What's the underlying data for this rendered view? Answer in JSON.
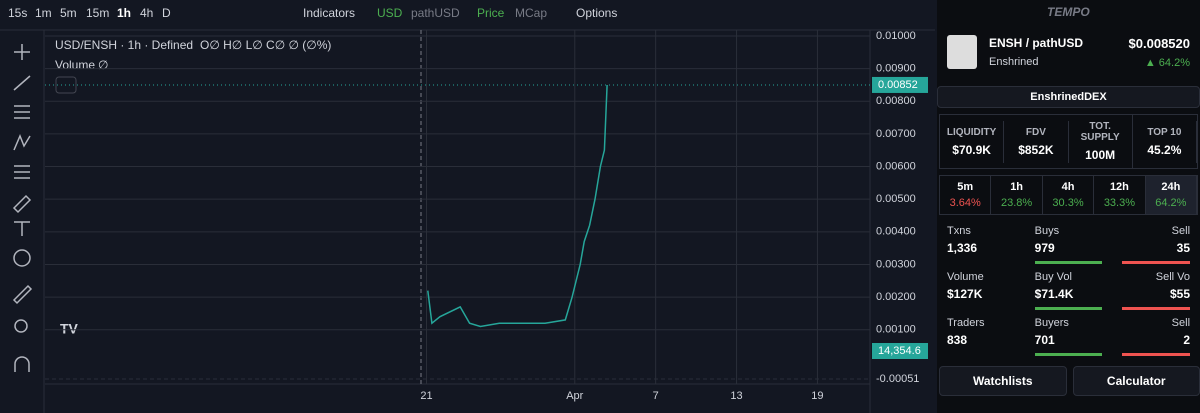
{
  "toolbar": {
    "timeframes": [
      "15s",
      "1m",
      "5m",
      "15m",
      "1h",
      "4h",
      "D"
    ],
    "indicators": "Indicators",
    "currency": "USD",
    "quote": "pathUSD",
    "price": "Price",
    "mcap": "MCap",
    "options": "Options"
  },
  "chart": {
    "legend": "USD/ENSH · 1h · Defined",
    "ohlc": "O∅ H∅ L∅ C∅ ∅ (∅%)",
    "volume_label": "Volume",
    "volume_value": "∅",
    "price_tag": "0.00852",
    "volume_tag": "14,354.6",
    "ylim": [
      -0.00051,
      0.01
    ],
    "yticks": [
      {
        "value": 0.001,
        "label": "0.00100"
      },
      {
        "value": 0.002,
        "label": "0.00200"
      },
      {
        "value": 0.003,
        "label": "0.00300"
      },
      {
        "value": 0.004,
        "label": "0.00400"
      },
      {
        "value": 0.005,
        "label": "0.00500"
      },
      {
        "value": 0.006,
        "label": "0.00600"
      },
      {
        "value": 0.007,
        "label": "0.00700"
      },
      {
        "value": 0.008,
        "label": "0.00800"
      },
      {
        "value": 0.009,
        "label": "0.00900"
      },
      {
        "value": 0.01,
        "label": "0.01000"
      },
      {
        "value": -0.00051,
        "label": "-0.00051"
      }
    ],
    "xlim": [
      -7.3,
      53.9
    ],
    "xticks": [
      21,
      {
        "value": 32,
        "label": "Apr"
      },
      {
        "value": 38,
        "label": "7"
      },
      {
        "value": 44,
        "label": "13"
      },
      {
        "value": 50,
        "label": "19"
      }
    ],
    "price": {
      "color": "#26a69a",
      "x": [
        21.1,
        21.4,
        22,
        23.5,
        24.2,
        25,
        26.4,
        27.9,
        29.8,
        31.3,
        31.8,
        32.4,
        32.7,
        33.1,
        33.5,
        33.9,
        34.2,
        34.4
      ],
      "y": [
        0.0022,
        0.0012,
        0.0014,
        0.0017,
        0.0012,
        0.0011,
        0.0012,
        0.0012,
        0.0012,
        0.0013,
        0.002,
        0.003,
        0.0037,
        0.0042,
        0.005,
        0.006,
        0.0065,
        0.0085
      ]
    }
  },
  "panel": {
    "brand": "TEMPO",
    "token": "ENSH",
    "quote": "/ pathUSD",
    "price": "$0.008520",
    "name": "Enshrined",
    "change": "▲ 64.2%",
    "link": "EnshrinedDEX",
    "stats": [
      {
        "label": "LIQUIDITY",
        "value": "$70.9K"
      },
      {
        "label": "FDV",
        "value": "$852K"
      },
      {
        "label": "TOT. SUPPLY",
        "value": "100M"
      },
      {
        "label": "TOP 10",
        "value": "45.2%"
      }
    ],
    "periods": [
      {
        "label": "5m",
        "value": "3.64%"
      },
      {
        "label": "1h",
        "value": "23.8%"
      },
      {
        "label": "4h",
        "value": "30.3%"
      },
      {
        "label": "12h",
        "value": "33.3%"
      },
      {
        "label": "24h",
        "value": "64.2%"
      }
    ],
    "rows": [
      [
        {
          "label": "Txns",
          "value": "1,336"
        },
        {
          "label": "Buys",
          "value": "979"
        },
        {
          "label": "Sell",
          "value": "35"
        }
      ],
      [
        {
          "label": "Volume",
          "value": "$127K"
        },
        {
          "label": "Buy Vol",
          "value": "$71.4K"
        },
        {
          "label": "Sell Vo",
          "value": "$55"
        }
      ],
      [
        {
          "label": "Traders",
          "value": "838"
        },
        {
          "label": "Buyers",
          "value": "701"
        },
        {
          "label": "Sell",
          "value": "2"
        }
      ]
    ],
    "watchlists": "Watchlists",
    "calculator": "Calculator"
  }
}
